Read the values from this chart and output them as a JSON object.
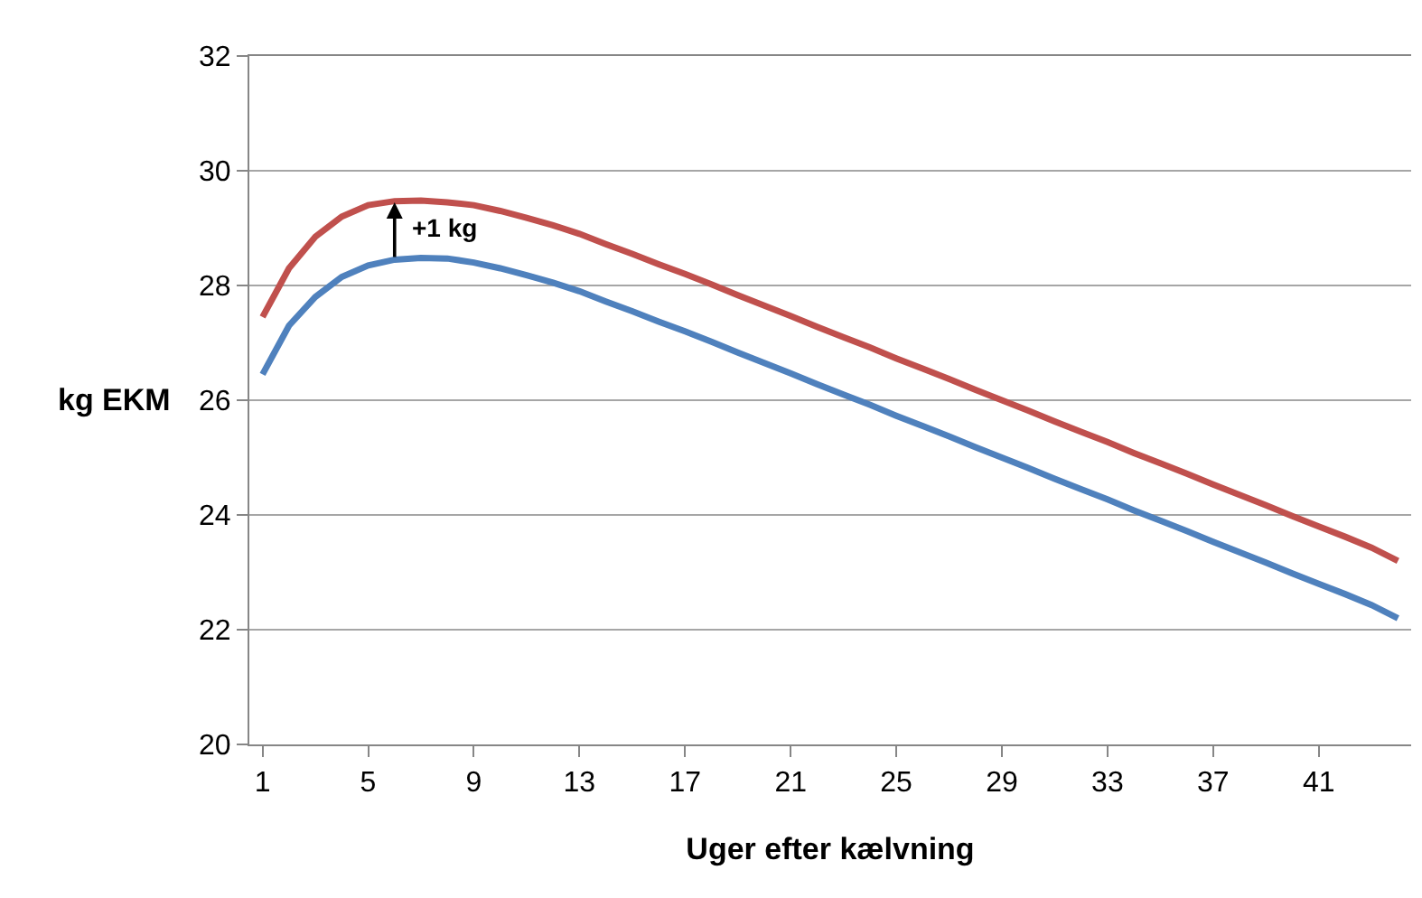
{
  "chart_data": {
    "type": "line",
    "xlabel": "Uger efter kælvning",
    "ylabel": "kg EKM",
    "x": [
      1,
      2,
      3,
      4,
      5,
      6,
      7,
      8,
      9,
      10,
      11,
      12,
      13,
      14,
      15,
      16,
      17,
      18,
      19,
      20,
      21,
      22,
      23,
      24,
      25,
      26,
      27,
      28,
      29,
      30,
      31,
      32,
      33,
      34,
      35,
      36,
      37,
      38,
      39,
      40,
      41,
      42,
      43,
      44
    ],
    "series": [
      {
        "color": "#4f81bd",
        "values": [
          26.45,
          27.3,
          27.8,
          28.15,
          28.35,
          28.45,
          28.48,
          28.47,
          28.4,
          28.3,
          28.18,
          28.05,
          27.9,
          27.72,
          27.55,
          27.37,
          27.2,
          27.02,
          26.83,
          26.65,
          26.47,
          26.28,
          26.1,
          25.92,
          25.73,
          25.55,
          25.37,
          25.18,
          25.0,
          24.82,
          24.63,
          24.45,
          24.27,
          24.08,
          23.9,
          23.72,
          23.53,
          23.35,
          23.17,
          22.98,
          22.8,
          22.62,
          22.43,
          22.2
        ]
      },
      {
        "color": "#c0504d",
        "values": [
          27.45,
          28.3,
          28.85,
          29.2,
          29.4,
          29.47,
          29.48,
          29.45,
          29.4,
          29.3,
          29.18,
          29.05,
          28.9,
          28.72,
          28.55,
          28.37,
          28.2,
          28.02,
          27.83,
          27.65,
          27.47,
          27.28,
          27.1,
          26.92,
          26.73,
          26.55,
          26.37,
          26.18,
          26.0,
          25.82,
          25.63,
          25.45,
          25.27,
          25.08,
          24.9,
          24.72,
          24.53,
          24.35,
          24.17,
          23.98,
          23.8,
          23.62,
          23.43,
          23.2
        ]
      }
    ],
    "annotations": [
      {
        "text": "+1 kg",
        "x": 6,
        "y": 29.45
      }
    ],
    "xlim": [
      0.5,
      44.5
    ],
    "xticks": [
      1,
      5,
      9,
      13,
      17,
      21,
      25,
      29,
      33,
      37,
      41
    ],
    "ylim": [
      20,
      32
    ],
    "yticks": [
      20,
      22,
      24,
      26,
      28,
      30,
      32
    ],
    "grid": "y",
    "marker": "none",
    "line_style": "solid"
  }
}
